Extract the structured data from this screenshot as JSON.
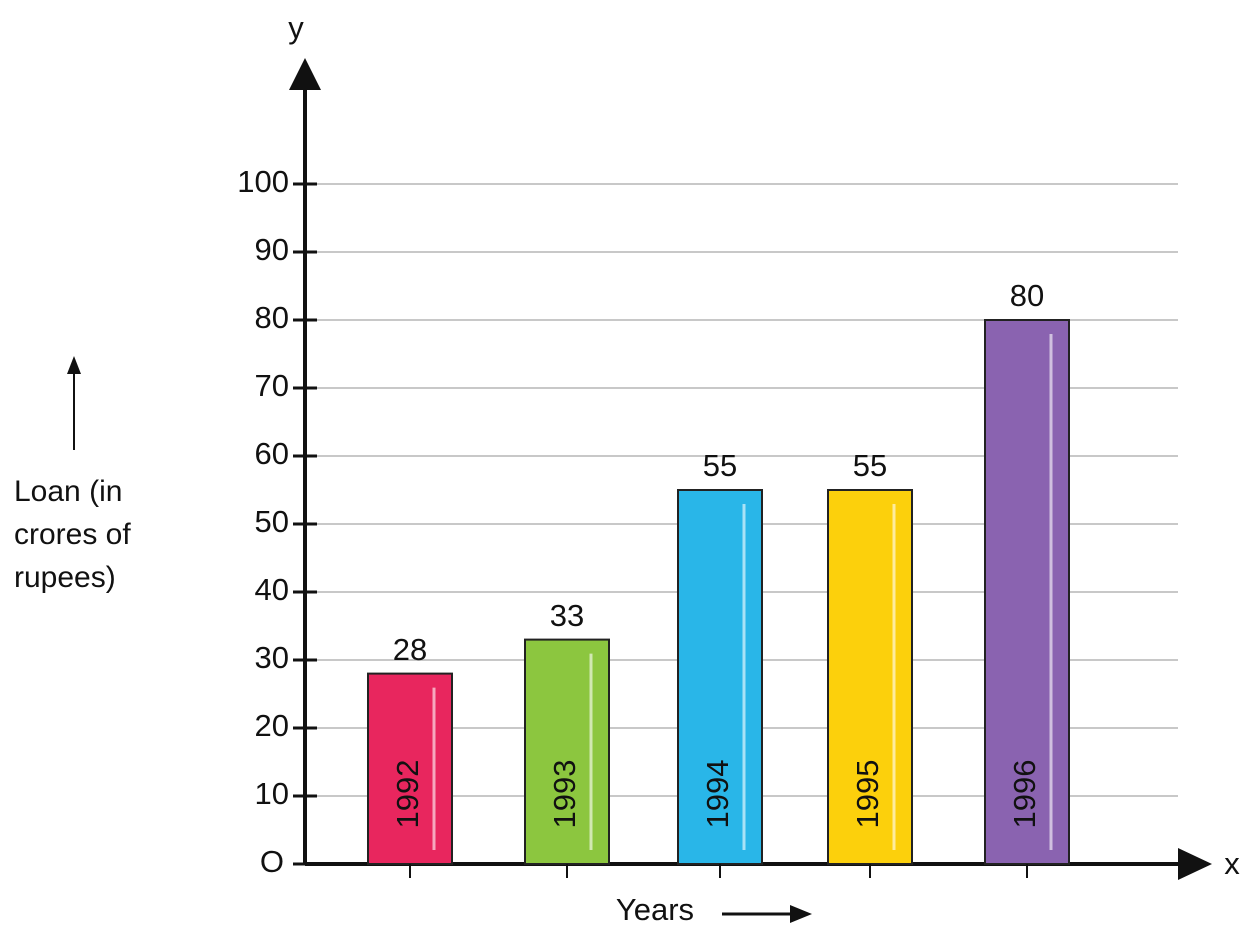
{
  "chart_data": {
    "type": "bar",
    "y_axis_letter": "y",
    "x_axis_letter": "x",
    "ylabel": "Loan (in crores of rupees)",
    "xlabel": "Years",
    "categories": [
      "1992",
      "1993",
      "1994",
      "1995",
      "1996"
    ],
    "values": [
      28,
      33,
      55,
      55,
      80
    ],
    "colors": [
      "#e8265e",
      "#8cc63f",
      "#29b6e8",
      "#fcd00c",
      "#8a63b0"
    ],
    "ylim": [
      0,
      100
    ],
    "yticks": [
      {
        "value": 0,
        "label": "O"
      },
      10,
      20,
      30,
      40,
      50,
      60,
      70,
      80,
      90,
      100
    ],
    "grid": true
  }
}
